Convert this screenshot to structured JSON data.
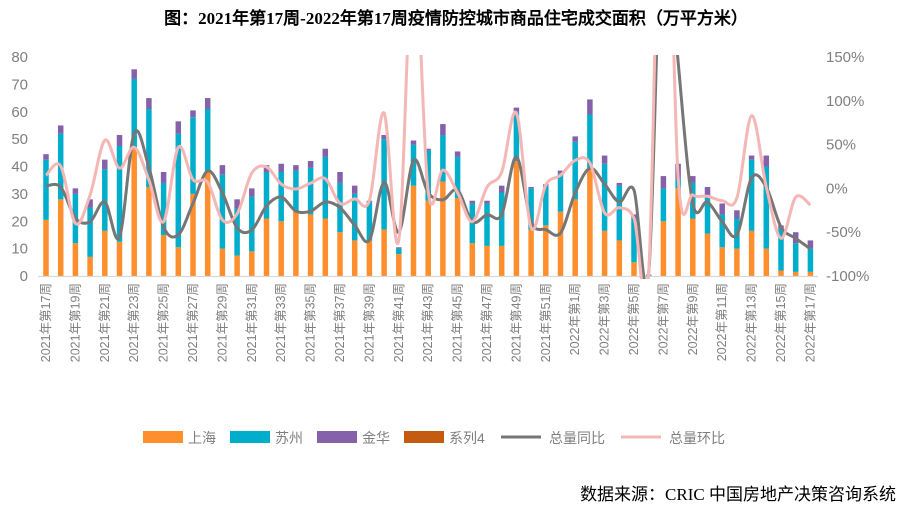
{
  "chart_data": {
    "type": "bar",
    "title": "图：2021年第17周-2022年第17周疫情防控城市商品住宅成交面积（万平方米）",
    "source": "数据来源：CRIC 中国房地产决策咨询系统",
    "categories": [
      "2021年第17周",
      "2021年第18周",
      "2021年第19周",
      "2021年第20周",
      "2021年第21周",
      "2021年第22周",
      "2021年第23周",
      "2021年第24周",
      "2021年第25周",
      "2021年第26周",
      "2021年第27周",
      "2021年第28周",
      "2021年第29周",
      "2021年第30周",
      "2021年第31周",
      "2021年第32周",
      "2021年第33周",
      "2021年第34周",
      "2021年第35周",
      "2021年第36周",
      "2021年第37周",
      "2021年第38周",
      "2021年第39周",
      "2021年第40周",
      "2021年第41周",
      "2021年第42周",
      "2021年第43周",
      "2021年第44周",
      "2021年第45周",
      "2021年第46周",
      "2021年第47周",
      "2021年第48周",
      "2021年第49周",
      "2021年第50周",
      "2021年第51周",
      "2021年第52周",
      "2022年第1周",
      "2022年第2周",
      "2022年第3周",
      "2022年第4周",
      "2022年第5周",
      "2022年第6周",
      "2022年第7周",
      "2022年第8周",
      "2022年第9周",
      "2022年第10周",
      "2022年第11周",
      "2022年第12周",
      "2022年第13周",
      "2022年第14周",
      "2022年第15周",
      "2022年第16周",
      "2022年第17周"
    ],
    "label_every": 2,
    "bar_series": [
      {
        "name": "上海",
        "color": "#FF8F2D",
        "values": [
          20.5,
          28,
          12,
          7,
          16.5,
          12.5,
          47,
          32.5,
          15,
          10.5,
          30,
          38,
          10,
          7.5,
          9,
          21,
          20,
          23.5,
          22.5,
          21,
          16,
          13,
          13,
          17,
          8,
          33,
          27.5,
          34.5,
          28.5,
          12,
          11,
          11,
          42,
          17,
          18.5,
          23.5,
          28,
          39.5,
          16.5,
          13,
          5,
          0,
          20,
          32,
          21,
          15.5,
          10.5,
          10,
          16.5,
          10,
          2,
          1.5,
          1.5
        ]
      },
      {
        "name": "苏州",
        "color": "#00AECB",
        "values": [
          22,
          24,
          18,
          18,
          22.5,
          35,
          25,
          28.5,
          19,
          41.5,
          28,
          23,
          27,
          17,
          20,
          17,
          18,
          15,
          17,
          22.5,
          18,
          17,
          14,
          33,
          2,
          15,
          18.5,
          17,
          15,
          14.5,
          15.5,
          19.5,
          18,
          15,
          14.5,
          14,
          21,
          19.5,
          24.5,
          20,
          16,
          0.3,
          12,
          3.5,
          13,
          13,
          12,
          11,
          26,
          30,
          15.5,
          10.5,
          8.5
        ]
      },
      {
        "name": "金华",
        "color": "#8561A9",
        "values": [
          2,
          3,
          2,
          3,
          3.5,
          4,
          3.5,
          4,
          4,
          4.5,
          2.5,
          4,
          3.5,
          3.5,
          3,
          2.5,
          3,
          2,
          2.5,
          3,
          4,
          3,
          0.5,
          1.5,
          0.5,
          1.5,
          0.5,
          4,
          2,
          1,
          1,
          2.5,
          1.5,
          0.5,
          0.5,
          1,
          2,
          5.5,
          3,
          1,
          1.5,
          0.2,
          4.5,
          5.5,
          2.5,
          4,
          4,
          3,
          1.5,
          4,
          1,
          4,
          3
        ]
      },
      {
        "name": "系列4",
        "color": "#C55A11",
        "values": []
      }
    ],
    "line_series": [
      {
        "name": "总量同比",
        "color": "#767676",
        "axis": "right",
        "values": [
          2.7,
          1.6,
          -34,
          -38,
          -15.5,
          -55.5,
          63,
          24,
          -44,
          -53,
          -17,
          20,
          -5,
          -45,
          -47.5,
          -20,
          -10,
          -26,
          -26,
          -15.5,
          -22,
          -42,
          -59,
          7,
          -50,
          32,
          -5,
          -13,
          -2,
          -38,
          -30,
          -30,
          36,
          -38,
          -47,
          -51,
          -5,
          23,
          5,
          -15.5,
          -2,
          -96,
          350,
          145,
          -17,
          -15.5,
          -38,
          -53,
          12,
          1.5,
          -44,
          -57,
          -69
        ]
      },
      {
        "name": "总量环比",
        "color": "#F4B7B5",
        "axis": "right",
        "values": [
          15,
          25.6,
          -40,
          -7.5,
          55,
          23,
          47,
          9.6,
          -38,
          47,
          10,
          7,
          -36,
          -29,
          17.6,
          24.4,
          5,
          -0.7,
          6,
          11,
          -17,
          -12,
          -14,
          86,
          -59,
          280,
          -4,
          21,
          -5,
          -38,
          1.5,
          18.7,
          86,
          -45,
          4,
          15,
          32,
          29,
          -28,
          -22,
          -34,
          -96,
          500,
          13,
          -7.5,
          -9,
          -14,
          -11,
          83,
          1.5,
          -57,
          -10,
          -19
        ]
      }
    ],
    "y_left": {
      "min": 0,
      "max": 80,
      "ticks": [
        "0",
        "10",
        "20",
        "30",
        "40",
        "50",
        "60",
        "70",
        "80"
      ]
    },
    "y_right": {
      "min": -100,
      "max": 150,
      "ticks": [
        "-100%",
        "-50%",
        "0%",
        "50%",
        "100%",
        "150%"
      ]
    },
    "grid": false,
    "legend_position": "bottom"
  }
}
